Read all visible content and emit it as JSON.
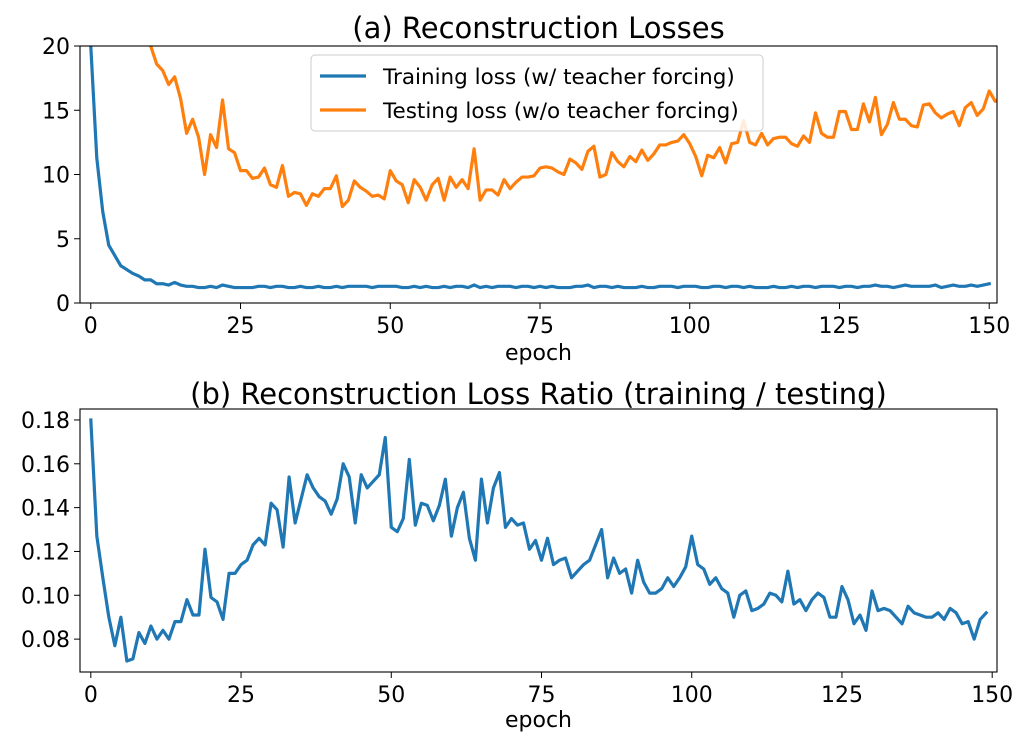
{
  "chart_data": [
    {
      "type": "line",
      "title": "(a) Reconstruction Losses",
      "xlabel": "epoch",
      "ylabel": "",
      "xlim": [
        -1.8,
        151.3
      ],
      "ylim": [
        0,
        20
      ],
      "xticks": [
        0,
        25,
        50,
        75,
        100,
        125,
        150
      ],
      "yticks": [
        0,
        5,
        10,
        15,
        20
      ],
      "grid": false,
      "legend_position": "upper center",
      "series": [
        {
          "name": "Training loss (w/ teacher forcing)",
          "color": "#1f77b4",
          "x_start": 0,
          "values": [
            20.0,
            11.3,
            7.1,
            4.5,
            3.7,
            2.9,
            2.6,
            2.3,
            2.1,
            1.8,
            1.8,
            1.5,
            1.5,
            1.4,
            1.6,
            1.4,
            1.3,
            1.3,
            1.2,
            1.2,
            1.3,
            1.2,
            1.4,
            1.3,
            1.2,
            1.2,
            1.2,
            1.2,
            1.3,
            1.3,
            1.2,
            1.3,
            1.3,
            1.2,
            1.2,
            1.3,
            1.2,
            1.2,
            1.3,
            1.2,
            1.2,
            1.3,
            1.2,
            1.3,
            1.3,
            1.3,
            1.3,
            1.2,
            1.3,
            1.3,
            1.3,
            1.3,
            1.2,
            1.2,
            1.3,
            1.2,
            1.3,
            1.2,
            1.2,
            1.3,
            1.2,
            1.3,
            1.3,
            1.2,
            1.4,
            1.2,
            1.3,
            1.2,
            1.3,
            1.3,
            1.3,
            1.2,
            1.3,
            1.3,
            1.2,
            1.3,
            1.2,
            1.3,
            1.2,
            1.2,
            1.2,
            1.3,
            1.3,
            1.4,
            1.2,
            1.3,
            1.3,
            1.2,
            1.3,
            1.2,
            1.2,
            1.2,
            1.3,
            1.2,
            1.2,
            1.3,
            1.3,
            1.3,
            1.2,
            1.3,
            1.3,
            1.3,
            1.2,
            1.2,
            1.3,
            1.3,
            1.2,
            1.3,
            1.3,
            1.2,
            1.3,
            1.2,
            1.2,
            1.2,
            1.3,
            1.2,
            1.2,
            1.3,
            1.2,
            1.3,
            1.3,
            1.2,
            1.3,
            1.3,
            1.3,
            1.2,
            1.3,
            1.3,
            1.2,
            1.3,
            1.3,
            1.4,
            1.3,
            1.3,
            1.2,
            1.3,
            1.4,
            1.3,
            1.3,
            1.3,
            1.3,
            1.4,
            1.2,
            1.3,
            1.4,
            1.3,
            1.3,
            1.4,
            1.3,
            1.4,
            1.5
          ]
        },
        {
          "name": "Testing loss (w/o teacher forcing)",
          "color": "#ff7f0e",
          "x_start": 10,
          "values": [
            20.0,
            18.6,
            18.1,
            17.0,
            17.6,
            15.9,
            13.2,
            14.3,
            12.9,
            10.0,
            13.1,
            12.1,
            15.8,
            12.0,
            11.7,
            10.3,
            10.3,
            9.7,
            9.8,
            10.5,
            9.2,
            9.0,
            10.7,
            8.3,
            8.6,
            8.5,
            7.6,
            8.5,
            8.3,
            8.9,
            8.9,
            9.9,
            7.5,
            8.0,
            9.5,
            9.0,
            8.7,
            8.3,
            8.4,
            8.1,
            10.3,
            9.5,
            9.2,
            7.8,
            9.6,
            9.0,
            8.0,
            9.2,
            9.7,
            8.0,
            9.8,
            9.0,
            9.6,
            8.9,
            12.0,
            8.0,
            8.8,
            8.8,
            8.4,
            9.6,
            8.9,
            9.4,
            9.8,
            9.8,
            9.9,
            10.5,
            10.6,
            10.5,
            10.2,
            10.0,
            11.2,
            10.9,
            10.4,
            11.8,
            12.2,
            9.8,
            10.0,
            11.7,
            11.0,
            10.6,
            11.4,
            11.0,
            11.9,
            11.1,
            11.6,
            12.3,
            12.3,
            12.5,
            12.6,
            13.1,
            12.4,
            11.4,
            9.9,
            11.5,
            11.3,
            12.1,
            10.9,
            12.4,
            12.5,
            14.2,
            12.5,
            12.3,
            13.2,
            12.3,
            12.8,
            12.9,
            12.9,
            12.4,
            12.2,
            13.0,
            12.5,
            14.8,
            13.2,
            12.9,
            12.9,
            14.9,
            14.9,
            13.5,
            13.5,
            15.5,
            14.1,
            16.0,
            13.1,
            13.9,
            15.6,
            14.3,
            14.3,
            13.8,
            13.7,
            15.4,
            15.5,
            14.8,
            14.4,
            14.7,
            14.9,
            13.8,
            15.2,
            15.6,
            14.6,
            15.1,
            16.5,
            15.7,
            15.9,
            16.0
          ]
        }
      ]
    },
    {
      "type": "line",
      "title": "(b) Reconstruction Loss Ratio (training / testing)",
      "xlabel": "epoch",
      "ylabel": "",
      "xlim": [
        -1.8,
        150.8
      ],
      "ylim": [
        0.065,
        0.185
      ],
      "xticks": [
        0,
        25,
        50,
        75,
        100,
        125,
        150
      ],
      "yticks": [
        0.08,
        0.1,
        0.12,
        0.14,
        0.16,
        0.18
      ],
      "ytick_labels": [
        "0.08",
        "0.10",
        "0.12",
        "0.14",
        "0.16",
        "0.18"
      ],
      "grid": false,
      "series": [
        {
          "color": "#1f77b4",
          "x_start": 0,
          "values": [
            0.18,
            0.127,
            0.108,
            0.09,
            0.077,
            0.09,
            0.07,
            0.071,
            0.083,
            0.078,
            0.086,
            0.08,
            0.084,
            0.08,
            0.088,
            0.088,
            0.098,
            0.091,
            0.091,
            0.121,
            0.099,
            0.097,
            0.089,
            0.11,
            0.11,
            0.114,
            0.116,
            0.123,
            0.126,
            0.123,
            0.142,
            0.139,
            0.122,
            0.154,
            0.133,
            0.144,
            0.155,
            0.149,
            0.145,
            0.143,
            0.137,
            0.144,
            0.16,
            0.154,
            0.133,
            0.155,
            0.149,
            0.152,
            0.155,
            0.172,
            0.131,
            0.129,
            0.135,
            0.162,
            0.132,
            0.142,
            0.141,
            0.134,
            0.141,
            0.153,
            0.127,
            0.14,
            0.147,
            0.126,
            0.116,
            0.153,
            0.133,
            0.149,
            0.156,
            0.131,
            0.135,
            0.132,
            0.133,
            0.121,
            0.125,
            0.116,
            0.126,
            0.114,
            0.116,
            0.117,
            0.108,
            0.111,
            0.114,
            0.116,
            0.123,
            0.13,
            0.108,
            0.117,
            0.11,
            0.112,
            0.101,
            0.116,
            0.106,
            0.101,
            0.101,
            0.103,
            0.108,
            0.104,
            0.108,
            0.113,
            0.127,
            0.114,
            0.112,
            0.105,
            0.108,
            0.103,
            0.101,
            0.09,
            0.1,
            0.102,
            0.093,
            0.094,
            0.096,
            0.101,
            0.1,
            0.097,
            0.111,
            0.096,
            0.098,
            0.093,
            0.098,
            0.101,
            0.099,
            0.09,
            0.09,
            0.104,
            0.098,
            0.087,
            0.091,
            0.084,
            0.102,
            0.093,
            0.094,
            0.093,
            0.09,
            0.087,
            0.095,
            0.092,
            0.091,
            0.09,
            0.09,
            0.092,
            0.089,
            0.094,
            0.092,
            0.087,
            0.088,
            0.08,
            0.089,
            0.092
          ]
        }
      ]
    }
  ]
}
